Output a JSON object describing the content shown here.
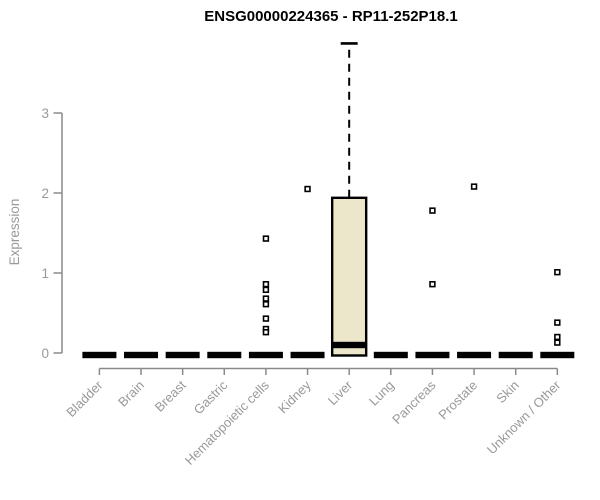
{
  "title": "ENSG00000224365 - RP11-252P18.1",
  "colors": {
    "background": "#ffffff",
    "axis": "#8a8a8a",
    "label": "#999999",
    "title": "#000000",
    "box_fill": "#ece7cb",
    "box_stroke": "#000000",
    "outlier_stroke": "#000000"
  },
  "chart_data": {
    "type": "boxplot",
    "title": "ENSG00000224365 - RP11-252P18.1",
    "xlabel": "",
    "ylabel": "Expression",
    "ylim": [
      0,
      3.9
    ],
    "yticks": [
      0,
      1,
      2,
      3
    ],
    "grid": false,
    "legend": "none",
    "categories": [
      "Bladder",
      "Brain",
      "Breast",
      "Gastric",
      "Hematopoietic cells",
      "Kidney",
      "Liver",
      "Lung",
      "Pancreas",
      "Prostate",
      "Skin",
      "Unknown / Other"
    ],
    "series": [
      {
        "category": "Bladder",
        "whisker_low": 0,
        "q1": 0,
        "median": 0,
        "q3": 0,
        "whisker_high": 0,
        "outliers": []
      },
      {
        "category": "Brain",
        "whisker_low": 0,
        "q1": 0,
        "median": 0,
        "q3": 0,
        "whisker_high": 0,
        "outliers": []
      },
      {
        "category": "Breast",
        "whisker_low": 0,
        "q1": 0,
        "median": 0,
        "q3": 0,
        "whisker_high": 0,
        "outliers": []
      },
      {
        "category": "Gastric",
        "whisker_low": 0,
        "q1": 0,
        "median": 0,
        "q3": 0,
        "whisker_high": 0,
        "outliers": []
      },
      {
        "category": "Hematopoietic cells",
        "whisker_low": 0,
        "q1": 0,
        "median": 0,
        "q3": 0,
        "whisker_high": 0,
        "outliers": [
          1.43,
          0.86,
          0.79,
          0.68,
          0.61,
          0.43,
          0.3,
          0.26
        ]
      },
      {
        "category": "Kidney",
        "whisker_low": 0,
        "q1": 0,
        "median": 0,
        "q3": 0,
        "whisker_high": 0,
        "outliers": [
          2.05
        ]
      },
      {
        "category": "Liver",
        "whisker_low": 0,
        "q1": 0,
        "median": 0.1,
        "q3": 1.94,
        "whisker_high": 3.87,
        "outliers": []
      },
      {
        "category": "Lung",
        "whisker_low": 0,
        "q1": 0,
        "median": 0,
        "q3": 0,
        "whisker_high": 0,
        "outliers": []
      },
      {
        "category": "Pancreas",
        "whisker_low": 0,
        "q1": 0,
        "median": 0,
        "q3": 0,
        "whisker_high": 0,
        "outliers": [
          1.78,
          0.86
        ]
      },
      {
        "category": "Prostate",
        "whisker_low": 0,
        "q1": 0,
        "median": 0,
        "q3": 0,
        "whisker_high": 0,
        "outliers": [
          2.08
        ]
      },
      {
        "category": "Skin",
        "whisker_low": 0,
        "q1": 0,
        "median": 0,
        "q3": 0,
        "whisker_high": 0,
        "outliers": []
      },
      {
        "category": "Unknown / Other",
        "whisker_low": 0,
        "q1": 0,
        "median": 0,
        "q3": 0,
        "whisker_high": 0,
        "outliers": [
          1.01,
          0.38,
          0.2,
          0.13
        ]
      }
    ]
  }
}
